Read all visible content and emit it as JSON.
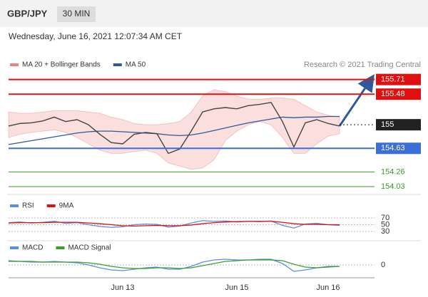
{
  "header": {
    "symbol": "GBP/JPY",
    "interval": "30 MIN",
    "date": "Wednesday, June 16, 2021 12:07:34 AM CET"
  },
  "chart_data": [
    {
      "type": "line",
      "credit": "Research © 2021 Trading Central",
      "ylim": [
        153.94,
        155.84
      ],
      "color": "#444444",
      "values": [
        154.98,
        155.02,
        155.03,
        155.06,
        155.12,
        155.05,
        155.08,
        155.0,
        154.85,
        154.72,
        154.7,
        154.85,
        154.88,
        154.86,
        154.55,
        154.62,
        154.9,
        155.2,
        155.25,
        155.27,
        155.25,
        155.3,
        155.32,
        155.35,
        155.05,
        154.65,
        155.03,
        155.08,
        155.02,
        154.98
      ],
      "series": [
        {
          "name": "MA 20 + Bollinger Bands",
          "color": "#f08080",
          "upper": [
            155.2,
            155.18,
            155.18,
            155.2,
            155.22,
            155.22,
            155.22,
            155.2,
            155.18,
            155.12,
            155.08,
            155.02,
            155.0,
            155.0,
            155.02,
            155.05,
            155.2,
            155.45,
            155.55,
            155.52,
            155.45,
            155.4,
            155.4,
            155.42,
            155.42,
            155.4,
            155.3,
            155.2,
            155.15,
            155.12
          ],
          "lower": [
            154.8,
            154.85,
            154.88,
            154.9,
            154.92,
            154.88,
            154.8,
            154.7,
            154.6,
            154.55,
            154.55,
            154.58,
            154.6,
            154.55,
            154.4,
            154.35,
            154.3,
            154.32,
            154.45,
            154.75,
            154.9,
            155.0,
            155.05,
            155.0,
            154.8,
            154.55,
            154.55,
            154.7,
            154.82,
            154.86
          ]
        },
        {
          "name": "MA 50",
          "color": "#2e5a9c",
          "values": [
            154.69,
            154.72,
            154.75,
            154.78,
            154.81,
            154.84,
            154.87,
            154.89,
            154.9,
            154.9,
            154.89,
            154.88,
            154.87,
            154.86,
            154.84,
            154.83,
            154.84,
            154.87,
            154.91,
            154.95,
            154.99,
            155.03,
            155.06,
            155.09,
            155.12,
            155.11,
            155.12,
            155.12,
            155.13,
            155.13
          ]
        }
      ],
      "levels": [
        {
          "value": 155.71,
          "color": "#e01010",
          "boxed": true
        },
        {
          "value": 155.48,
          "color": "#e01010",
          "boxed": true
        },
        {
          "value": 155.0,
          "color": "#222222",
          "boxed": true,
          "dashed": true
        },
        {
          "value": 154.63,
          "color": "#3a6fd8",
          "boxed": true
        },
        {
          "value": 154.26,
          "color": "#3a9a2a",
          "boxed": false
        },
        {
          "value": 154.03,
          "color": "#3a9a2a",
          "boxed": false
        }
      ]
    },
    {
      "type": "line",
      "ylim": [
        19.5,
        93
      ],
      "yticks": [
        70,
        50,
        30
      ],
      "series": [
        {
          "name": "RSI",
          "color": "#5b8de0",
          "values": [
            56,
            58,
            55,
            57,
            60,
            54,
            56,
            50,
            45,
            42,
            44,
            50,
            52,
            51,
            43,
            46,
            55,
            62,
            60,
            61,
            58,
            60,
            59,
            61,
            48,
            40,
            52,
            54,
            50,
            48
          ]
        },
        {
          "name": "9MA",
          "color": "#e01010",
          "values": [
            55,
            56,
            56,
            56,
            57,
            57,
            57,
            55,
            53,
            50,
            47,
            46,
            47,
            48,
            47,
            47,
            49,
            53,
            56,
            58,
            59,
            60,
            60,
            60,
            57,
            53,
            51,
            51,
            50,
            50
          ]
        }
      ]
    },
    {
      "type": "line",
      "ylim": [
        -0.2,
        0.2
      ],
      "yticks": [
        0
      ],
      "categories": [
        null,
        null,
        null,
        null,
        null,
        null,
        null,
        null,
        null,
        null,
        "Jun 13",
        null,
        null,
        null,
        null,
        null,
        null,
        null,
        null,
        null,
        "Jun 15",
        null,
        null,
        null,
        null,
        null,
        null,
        null,
        "Jun 16",
        null
      ],
      "series": [
        {
          "name": "MACD",
          "color": "#5b8de0",
          "values": [
            0.06,
            0.05,
            0.04,
            0.04,
            0.05,
            0.04,
            0.03,
            0.0,
            -0.04,
            -0.07,
            -0.08,
            -0.06,
            -0.04,
            -0.03,
            -0.06,
            -0.06,
            -0.02,
            0.04,
            0.07,
            0.08,
            0.07,
            0.07,
            0.08,
            0.08,
            0.02,
            -0.09,
            -0.07,
            -0.04,
            -0.02,
            -0.02
          ]
        },
        {
          "name": "MACD Signal",
          "color": "#3aa02a",
          "values": [
            0.05,
            0.05,
            0.05,
            0.04,
            0.04,
            0.04,
            0.04,
            0.03,
            0.01,
            -0.02,
            -0.04,
            -0.05,
            -0.05,
            -0.04,
            -0.04,
            -0.05,
            -0.04,
            -0.01,
            0.02,
            0.05,
            0.06,
            0.07,
            0.07,
            0.07,
            0.06,
            0.01,
            -0.03,
            -0.04,
            -0.03,
            -0.02
          ]
        }
      ]
    }
  ]
}
